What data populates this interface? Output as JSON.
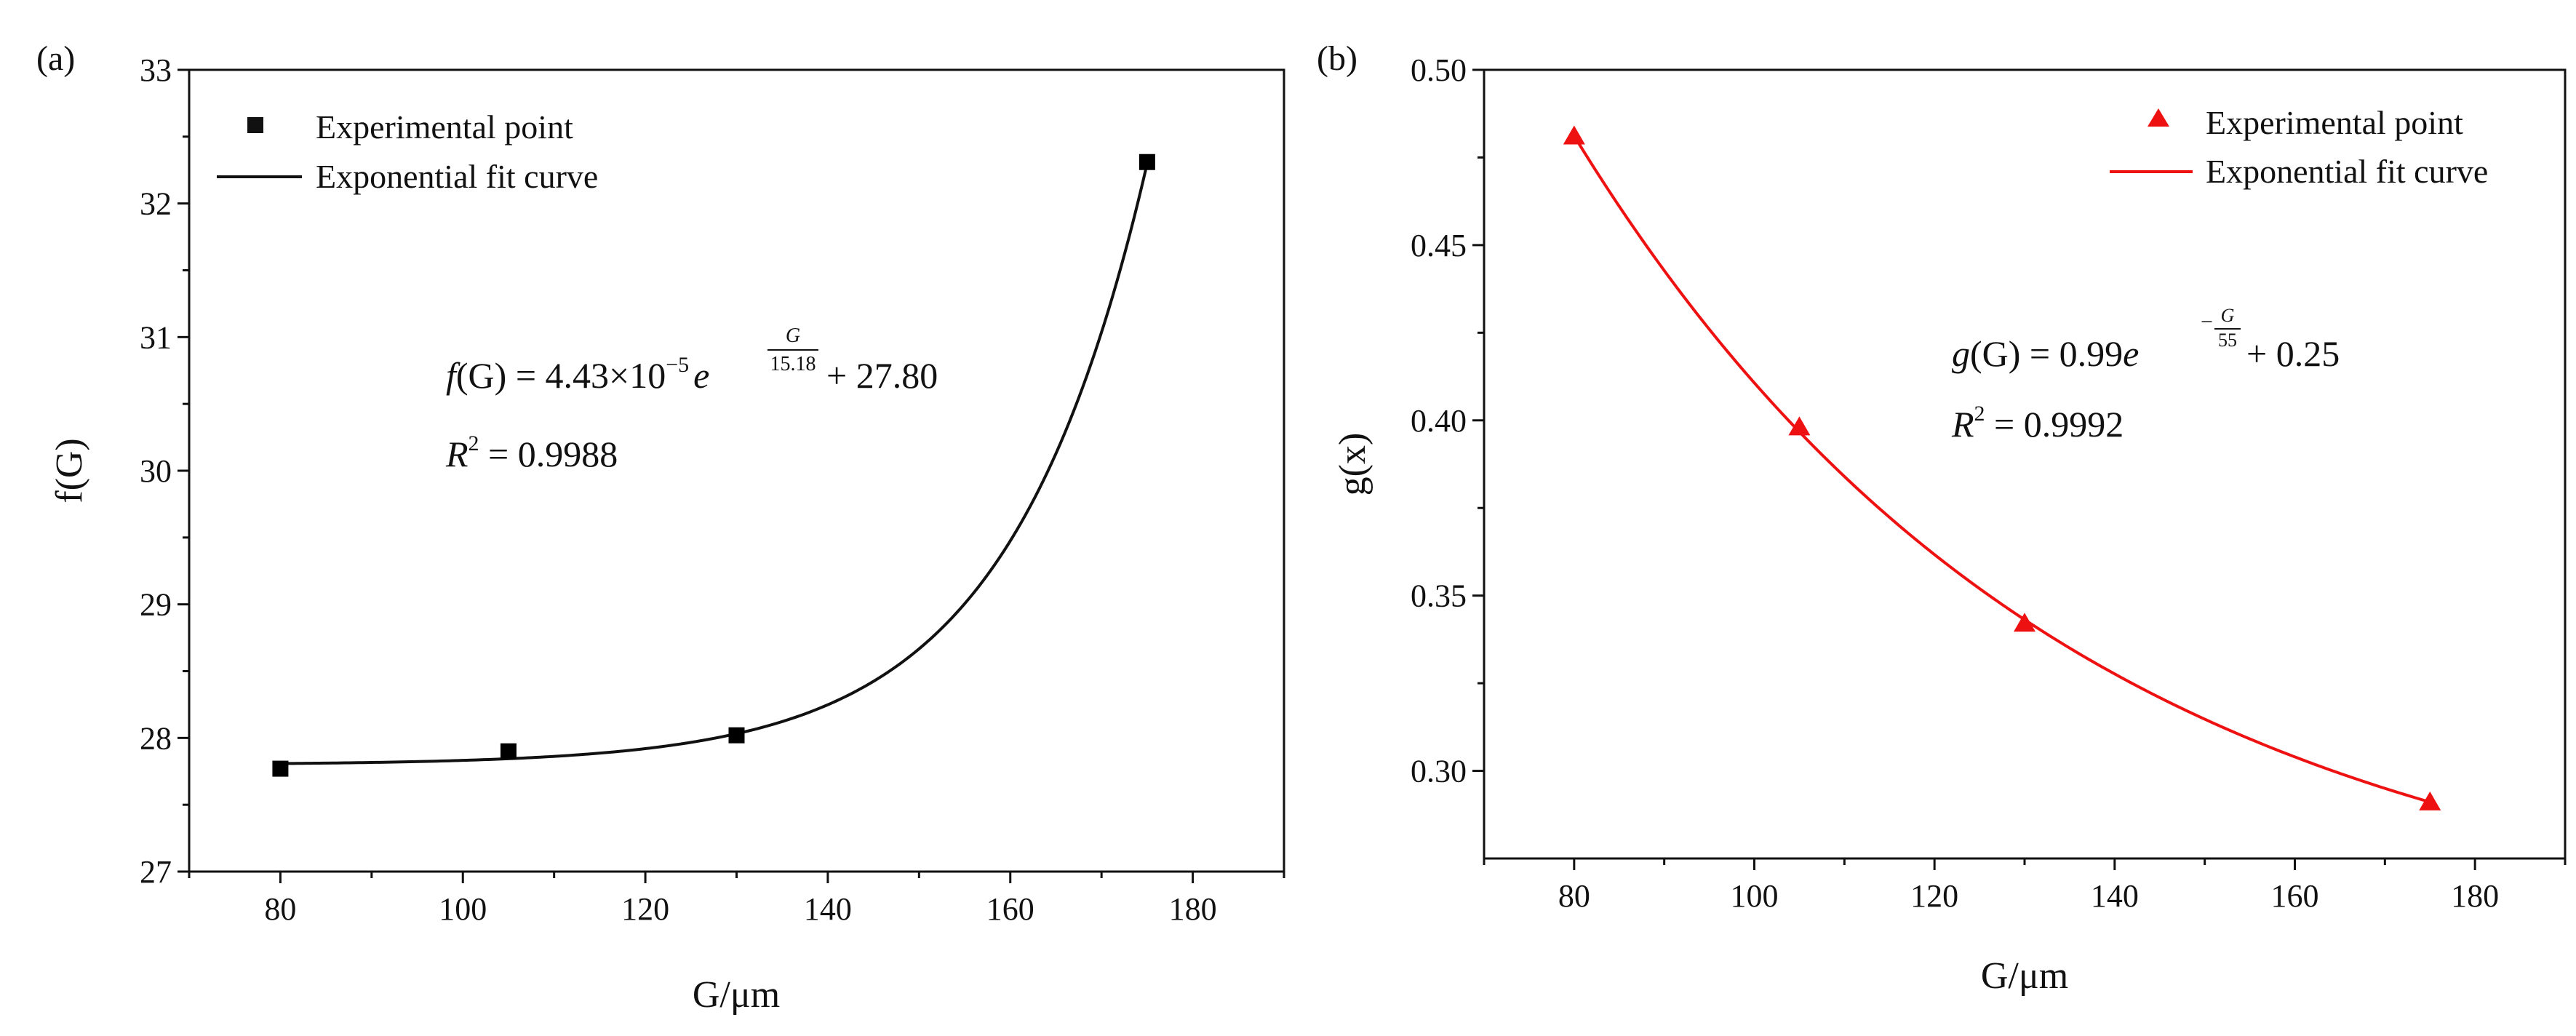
{
  "panel_labels": [
    "(a)",
    "(b)"
  ],
  "chart_data": [
    {
      "type": "scatter",
      "panel": "(a)",
      "xlabel": "G/μm",
      "ylabel": "f(G)",
      "xlim": [
        70,
        190
      ],
      "ylim": [
        27,
        33
      ],
      "xticks": [
        80,
        100,
        120,
        140,
        160,
        180
      ],
      "yticks": [
        27,
        28,
        29,
        30,
        31,
        32,
        33
      ],
      "tick_labels_x": [
        "80",
        "100",
        "120",
        "140",
        "160",
        "180"
      ],
      "tick_labels_y": [
        "27",
        "28",
        "29",
        "30",
        "31",
        "32",
        "33"
      ],
      "grid": false,
      "legend_position": "top-left",
      "color": "#000000",
      "marker": "square",
      "series": [
        {
          "name": "Experimental point",
          "x": [
            80,
            105,
            130,
            175
          ],
          "y": [
            27.77,
            27.9,
            28.02,
            32.31
          ]
        }
      ],
      "fit": {
        "name": "Exponential fit curve",
        "a": 4.43e-05,
        "t": 15.18,
        "c": 27.8,
        "sign": 1,
        "x_range": [
          80,
          175
        ]
      },
      "equation": {
        "lhs": "f",
        "arg": "(G)",
        "rhs": " = 4.43×10",
        "exp": "−5",
        "e": "e",
        "frac_num": "G",
        "frac_den": "15.18",
        "const": " + 27.80"
      },
      "r2": {
        "r": "R",
        "sq": "2",
        "val": " = 0.9988"
      }
    },
    {
      "type": "scatter",
      "panel": "(b)",
      "xlabel": "G/μm",
      "ylabel": "g(x)",
      "xlim": [
        70,
        190
      ],
      "ylim": [
        0.275,
        0.5
      ],
      "xticks": [
        80,
        100,
        120,
        140,
        160,
        180
      ],
      "yticks": [
        0.3,
        0.35,
        0.4,
        0.45,
        0.5
      ],
      "tick_labels_x": [
        "80",
        "100",
        "120",
        "140",
        "160",
        "180"
      ],
      "tick_labels_y": [
        "0.30",
        "0.35",
        "0.40",
        "0.45",
        "0.50"
      ],
      "grid": false,
      "legend_position": "top-right",
      "color": "#ee1111",
      "marker": "triangle",
      "series": [
        {
          "name": "Experimental point",
          "x": [
            80,
            105,
            130,
            175
          ],
          "y": [
            0.481,
            0.398,
            0.342,
            0.291
          ]
        }
      ],
      "fit": {
        "name": "Exponential fit curve",
        "a": 0.99,
        "t": 55,
        "c": 0.25,
        "sign": -1,
        "x_range": [
          80,
          175
        ]
      },
      "equation": {
        "lhs": "g",
        "arg": "(G)",
        "rhs": " = 0.99",
        "exp": "",
        "e": "e",
        "frac_num": "G",
        "frac_den": "55",
        "const": " + 0.25"
      },
      "r2": {
        "r": "R",
        "sq": "2",
        "val": " = 0.9992"
      }
    }
  ]
}
